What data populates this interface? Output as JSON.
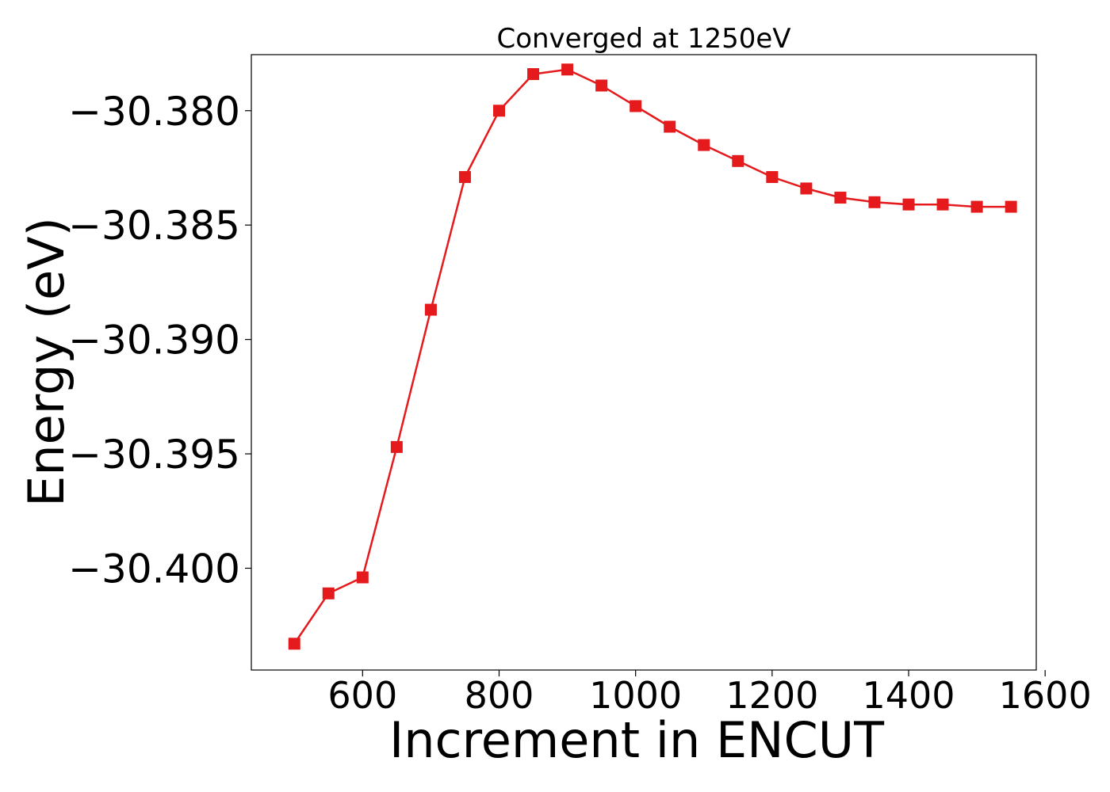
{
  "chart_data": {
    "type": "line",
    "title": "Converged at 1250eV",
    "xlabel": "Increment in ENCUT",
    "ylabel": "Energy (eV)",
    "xlim": [
      437,
      1587
    ],
    "ylim": [
      -30.40445,
      -30.37755
    ],
    "xticks": [
      600,
      800,
      1000,
      1200,
      1400,
      1600
    ],
    "xtick_labels": [
      "600",
      "800",
      "1000",
      "1200",
      "1400",
      "1600"
    ],
    "yticks": [
      -30.38,
      -30.385,
      -30.39,
      -30.395,
      -30.4
    ],
    "ytick_labels": [
      "−30.380",
      "−30.385",
      "−30.390",
      "−30.395",
      "−30.400"
    ],
    "grid": false,
    "legend": "none",
    "series": [
      {
        "color": "#e41a1c",
        "marker": "square",
        "x": [
          500,
          550,
          600,
          650,
          700,
          750,
          800,
          850,
          900,
          950,
          1000,
          1050,
          1100,
          1150,
          1200,
          1250,
          1300,
          1350,
          1400,
          1450,
          1500,
          1550
        ],
        "y": [
          -30.4033,
          -30.4011,
          -30.4004,
          -30.3947,
          -30.3887,
          -30.3829,
          -30.38,
          -30.3784,
          -30.3782,
          -30.3789,
          -30.3798,
          -30.3807,
          -30.3815,
          -30.3822,
          -30.3829,
          -30.3834,
          -30.3838,
          -30.384,
          -30.3841,
          -30.3841,
          -30.3842,
          -30.3842
        ]
      }
    ]
  }
}
